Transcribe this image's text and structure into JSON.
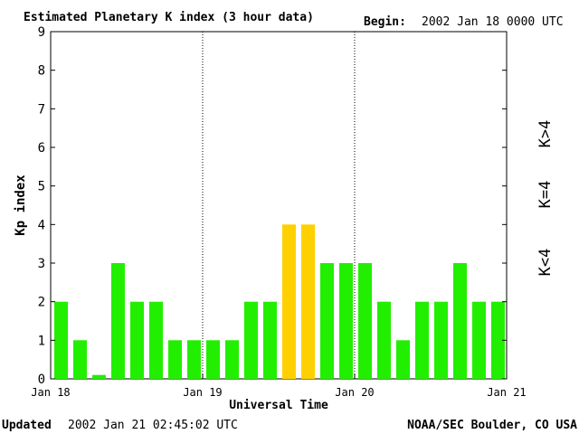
{
  "header": {
    "title": "Estimated Planetary K index (3 hour data)",
    "begin_label": "Begin:",
    "begin_value": "2002 Jan 18 0000 UTC"
  },
  "footer": {
    "updated_label": "Updated",
    "updated_value": "2002 Jan 21 02:45:02 UTC",
    "source": "NOAA/SEC Boulder, CO USA"
  },
  "legend": {
    "items": [
      {
        "label": "K<4",
        "color": "#22ee00"
      },
      {
        "label": "K=4",
        "color": "#ffd000"
      },
      {
        "label": "K>4",
        "color": "#ff2200"
      }
    ]
  },
  "chart_data": {
    "type": "bar",
    "ylabel": "Kp index",
    "xlabel": "Universal Time",
    "ylim": [
      0,
      9
    ],
    "yticks": [
      0,
      1,
      2,
      3,
      4,
      5,
      6,
      7,
      8,
      9
    ],
    "xticks": [
      "Jan 18",
      "Jan 19",
      "Jan 20",
      "Jan 21"
    ],
    "interval_hours": 3,
    "values": [
      2,
      1,
      0.1,
      3,
      2,
      2,
      1,
      1,
      1,
      1,
      2,
      2,
      4,
      4,
      3,
      3,
      3,
      2,
      1,
      2,
      2,
      3,
      2,
      2
    ],
    "colors": {
      "low": "#22ee00",
      "equal": "#ffd000",
      "high": "#ff2200"
    },
    "grid": false
  }
}
